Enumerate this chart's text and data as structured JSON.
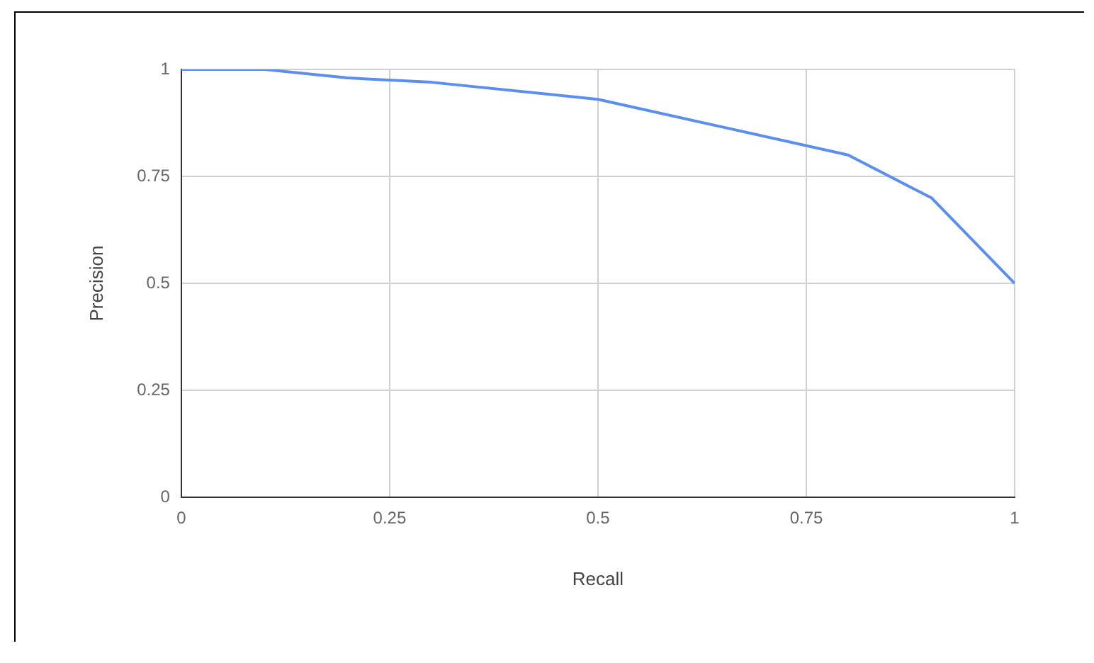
{
  "chart_data": {
    "type": "line",
    "xlabel": "Recall",
    "ylabel": "Precision",
    "x": [
      0,
      0.1,
      0.2,
      0.3,
      0.5,
      0.8,
      0.9,
      1
    ],
    "series": [
      {
        "color": "#5a8ef0",
        "values": [
          1,
          1,
          0.98,
          0.97,
          0.93,
          0.8,
          0.7,
          0.5
        ]
      }
    ],
    "xlim": [
      0,
      1
    ],
    "xticks": [
      0,
      0.25,
      0.5,
      0.75,
      1
    ],
    "ylim": [
      0,
      1
    ],
    "yticks": [
      0,
      0.25,
      0.5,
      0.75,
      1
    ],
    "grid": true,
    "legend": false,
    "marker": "none",
    "line_style": "solid"
  }
}
